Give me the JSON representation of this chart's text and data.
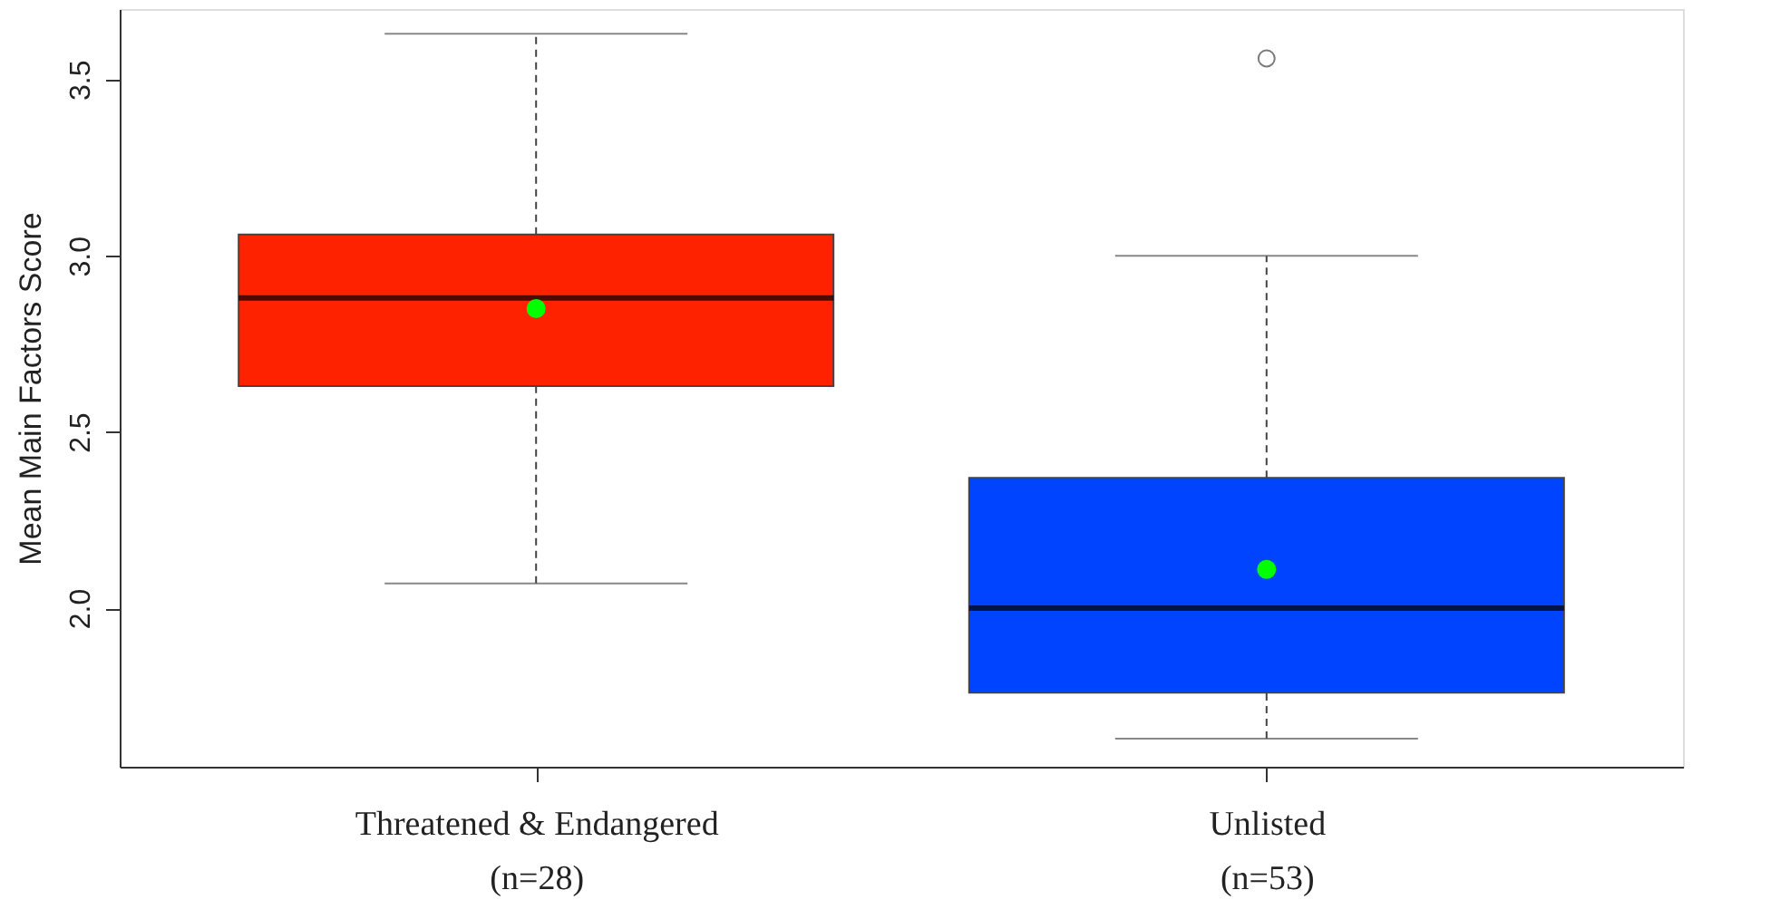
{
  "chart_data": {
    "type": "box",
    "ylabel": "Mean Main Factors Score",
    "categories": [
      "Threatened & Endangered\n(n=28)",
      "Unlisted\n(n=53)"
    ],
    "colors": [
      "#ff2200",
      "#0044ff"
    ],
    "boxes": [
      {
        "low": 2.07,
        "q1": 2.63,
        "median": 2.88,
        "q3": 3.06,
        "high": 3.63,
        "mean": 2.85
      },
      {
        "low": 1.63,
        "q1": 1.76,
        "median": 2.0,
        "q3": 2.37,
        "high": 3.0,
        "mean": 2.11,
        "outliers": [
          3.56
        ]
      }
    ],
    "ylim": [
      1.55,
      3.7
    ],
    "yticks": [
      {
        "value": 2,
        "label": "2.0"
      },
      {
        "value": 2.5,
        "label": "2.5"
      },
      {
        "value": 3,
        "label": "3.0"
      },
      {
        "value": 3.5,
        "label": "3.5"
      }
    ],
    "grid": false
  }
}
